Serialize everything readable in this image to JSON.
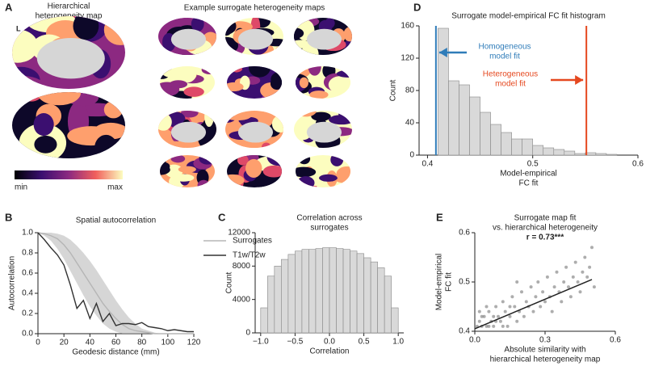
{
  "panel_a": {
    "label": "A",
    "title": [
      "Hierarchical",
      "heterogeneity map"
    ],
    "subtitle": "Example surrogate heterogeneity maps",
    "hemisphere": "L",
    "colorbar_labels": [
      "min",
      "max"
    ]
  },
  "chart_data": [
    {
      "type": "line",
      "label": "B",
      "title": "Spatial autocorrelation",
      "x_label": "Geodesic distance (mm)",
      "y_label": "Autocorrelation",
      "x": [
        0,
        5,
        10,
        15,
        20,
        25,
        30,
        35,
        40,
        45,
        50,
        55,
        60,
        65,
        70,
        75,
        80,
        85,
        90,
        95,
        100,
        105,
        110,
        115,
        120
      ],
      "series": [
        {
          "name": "Surrogates",
          "color": "#b5b5b5",
          "values": [
            1.0,
            0.99,
            0.97,
            0.94,
            0.88,
            0.8,
            0.7,
            0.6,
            0.5,
            0.4,
            0.3,
            0.22,
            0.15,
            0.09,
            0.05,
            0.03,
            0.02,
            0.01,
            0,
            0,
            0,
            0,
            0,
            0,
            0
          ],
          "lower": [
            1.0,
            0.97,
            0.92,
            0.84,
            0.74,
            0.62,
            0.5,
            0.38,
            0.27,
            0.18,
            0.1,
            0.05,
            0.02,
            0,
            0,
            0,
            0,
            0,
            0,
            0,
            0,
            0,
            0,
            0,
            0
          ],
          "upper": [
            1.0,
            1.0,
            1.0,
            0.99,
            0.97,
            0.93,
            0.87,
            0.8,
            0.72,
            0.63,
            0.53,
            0.43,
            0.33,
            0.24,
            0.16,
            0.1,
            0.05,
            0.03,
            0.01,
            0,
            0,
            0,
            0,
            0,
            0
          ]
        },
        {
          "name": "T1w/T2w",
          "color": "#333333",
          "values": [
            1.0,
            0.93,
            0.85,
            0.78,
            0.68,
            0.48,
            0.25,
            0.33,
            0.15,
            0.3,
            0.12,
            0.2,
            0.08,
            0.1,
            0.1,
            0.09,
            0.11,
            0.07,
            0.06,
            0.05,
            0.03,
            0.04,
            0.03,
            0.02,
            0.02
          ]
        }
      ],
      "xlim": [
        0,
        120
      ],
      "xticks": [
        0,
        20,
        40,
        60,
        80,
        100,
        120
      ],
      "ylim": [
        0,
        1
      ],
      "yticks": [
        {
          "value": 0,
          "label": "0.0"
        },
        {
          "value": 0.2,
          "label": "0.2"
        },
        {
          "value": 0.4,
          "label": "0.4"
        },
        {
          "value": 0.6,
          "label": "0.6"
        },
        {
          "value": 0.8,
          "label": "0.8"
        },
        {
          "value": 1,
          "label": "1.0"
        }
      ]
    },
    {
      "type": "histogram",
      "label": "C",
      "title": [
        "Correlation across",
        "surrogates"
      ],
      "x_label": "Correlation",
      "y_label": "Count",
      "color": "#d9d9d9",
      "bins": [
        -1.0,
        -0.9,
        -0.8,
        -0.7,
        -0.6,
        -0.5,
        -0.4,
        -0.3,
        -0.2,
        -0.1,
        0,
        0.1,
        0.2,
        0.3,
        0.4,
        0.5,
        0.6,
        0.7,
        0.8,
        0.9,
        1.0
      ],
      "values": [
        3000,
        6800,
        8000,
        8800,
        9400,
        9800,
        10000,
        10000,
        10100,
        10200,
        10200,
        10100,
        10000,
        9800,
        9500,
        9000,
        8500,
        7800,
        6800,
        3000
      ],
      "xlim": [
        -1.08,
        1.08
      ],
      "xticks": [
        {
          "value": -1,
          "label": "−1.0"
        },
        {
          "value": -0.5,
          "label": "−0.5"
        },
        {
          "value": 0,
          "label": "0.0"
        },
        {
          "value": 0.5,
          "label": "0.5"
        },
        {
          "value": 1,
          "label": "1.0"
        }
      ],
      "ylim": [
        0,
        12000
      ],
      "yticks": [
        0,
        4000,
        8000,
        12000
      ]
    },
    {
      "type": "histogram",
      "label": "D",
      "title": "Surrogate model-empirical FC fit histogram",
      "x_label": [
        "Model-empirical",
        "FC fit"
      ],
      "y_label": "Count",
      "color": "#d9d9d9",
      "bins": [
        0.41,
        0.42,
        0.43,
        0.44,
        0.45,
        0.46,
        0.47,
        0.48,
        0.49,
        0.5,
        0.51,
        0.52,
        0.53,
        0.54,
        0.55,
        0.56,
        0.57,
        0.58
      ],
      "values": [
        157,
        92,
        87,
        72,
        53,
        38,
        28,
        20,
        20,
        12,
        9,
        7,
        5,
        2,
        3,
        2,
        1
      ],
      "reference_lines": [
        {
          "value": 0.408,
          "color": "#2f7cb9",
          "label": [
            "Homogeneous",
            "model fit"
          ]
        },
        {
          "value": 0.551,
          "color": "#e5481f",
          "label": [
            "Heterogeneous",
            "model fit"
          ]
        }
      ],
      "xlim": [
        0.392,
        0.6
      ],
      "xticks": [
        0.4,
        0.5,
        0.6
      ],
      "ylim": [
        0,
        160
      ],
      "yticks": [
        0,
        40,
        80,
        120,
        160
      ]
    },
    {
      "type": "scatter",
      "label": "E",
      "title": [
        "Surrogate map fit",
        "vs. hierarchical heterogeneity"
      ],
      "annotation": "r = 0.73***",
      "x_label": [
        "Absolute similarity with",
        "hierarchical heterogeneity map"
      ],
      "y_label": [
        "Model-empirical",
        "FC fit"
      ],
      "color": "#777777",
      "x": [
        0.01,
        0.02,
        0.03,
        0.04,
        0.05,
        0.06,
        0.07,
        0.08,
        0.09,
        0.1,
        0.11,
        0.12,
        0.13,
        0.14,
        0.15,
        0.16,
        0.17,
        0.18,
        0.19,
        0.2,
        0.21,
        0.22,
        0.23,
        0.24,
        0.25,
        0.26,
        0.27,
        0.28,
        0.29,
        0.3,
        0.31,
        0.32,
        0.33,
        0.34,
        0.35,
        0.36,
        0.37,
        0.38,
        0.39,
        0.4,
        0.41,
        0.42,
        0.43,
        0.44,
        0.45,
        0.46,
        0.47,
        0.48,
        0.49,
        0.5,
        0.51,
        0.02,
        0.05,
        0.08,
        0.12,
        0.15,
        0.06,
        0.03,
        0.18,
        0.09
      ],
      "y": [
        0.41,
        0.42,
        0.41,
        0.43,
        0.41,
        0.44,
        0.42,
        0.41,
        0.45,
        0.43,
        0.42,
        0.46,
        0.44,
        0.41,
        0.43,
        0.47,
        0.45,
        0.42,
        0.44,
        0.48,
        0.43,
        0.46,
        0.45,
        0.49,
        0.44,
        0.47,
        0.5,
        0.45,
        0.48,
        0.46,
        0.51,
        0.47,
        0.44,
        0.49,
        0.52,
        0.48,
        0.46,
        0.5,
        0.53,
        0.49,
        0.47,
        0.51,
        0.54,
        0.5,
        0.48,
        0.52,
        0.55,
        0.51,
        0.53,
        0.57,
        0.49,
        0.44,
        0.45,
        0.43,
        0.41,
        0.45,
        0.41,
        0.43,
        0.5,
        0.42
      ],
      "fit": {
        "x": [
          0,
          0.5
        ],
        "y": [
          0.405,
          0.505
        ],
        "color": "#222222"
      },
      "xlim": [
        0,
        0.6
      ],
      "xticks": [
        {
          "value": 0,
          "label": "0.0"
        },
        0.3,
        0.6
      ],
      "ylim": [
        0.4,
        0.6
      ],
      "yticks": [
        0.4,
        0.5,
        0.6
      ]
    }
  ]
}
